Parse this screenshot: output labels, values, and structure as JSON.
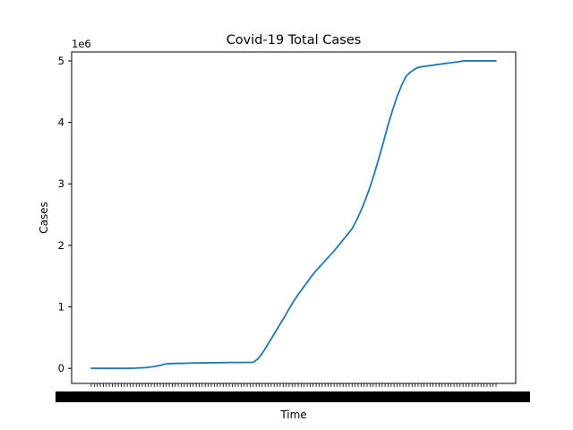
{
  "chart_data": {
    "type": "line",
    "title": "Covid-19 Total Cases",
    "xlabel": "Time",
    "ylabel": "Cases",
    "y_offset_label": "1e6",
    "ylim": [
      -0.245,
      5.145
    ],
    "yticks": [
      0,
      1,
      2,
      3,
      4,
      5
    ],
    "ytick_labels": [
      "0",
      "1",
      "2",
      "3",
      "4",
      "5"
    ],
    "y_multiplier": 1000000,
    "grid": false,
    "legend": "none",
    "x_tick_count": 136,
    "x_tick_labels_legible": false,
    "series": [
      {
        "color": "#1f77b4",
        "x": [
          0,
          10,
          20,
          25,
          30,
          33,
          34,
          36,
          40,
          50,
          60,
          70,
          75,
          78,
          80,
          85,
          90,
          95,
          100,
          105,
          110,
          115,
          120,
          125,
          130,
          135,
          140,
          145,
          150,
          155,
          160,
          165,
          170,
          175,
          180,
          185,
          190,
          195,
          200,
          205,
          210,
          215,
          220,
          225,
          230,
          235,
          240,
          245,
          250,
          255,
          260,
          265,
          270,
          275,
          280,
          285,
          290,
          295,
          300,
          305,
          310,
          315,
          320,
          325,
          330,
          335,
          340,
          345,
          350,
          355,
          360,
          365,
          370,
          375,
          380,
          385,
          390,
          395,
          400,
          405,
          410,
          415,
          420,
          425,
          430,
          435,
          440,
          445,
          450
        ],
        "y": [
          0,
          0,
          0,
          0,
          0,
          0,
          0,
          0,
          0,
          0.004,
          0.012,
          0.03,
          0.045,
          0.05,
          0.065,
          0.075,
          0.078,
          0.08,
          0.082,
          0.083,
          0.085,
          0.087,
          0.088,
          0.089,
          0.09,
          0.091,
          0.092,
          0.093,
          0.094,
          0.095,
          0.095,
          0.096,
          0.096,
          0.097,
          0.098,
          0.15,
          0.24,
          0.36,
          0.48,
          0.6,
          0.72,
          0.84,
          0.97,
          1.09,
          1.2,
          1.3,
          1.4,
          1.5,
          1.59,
          1.67,
          1.75,
          1.83,
          1.91,
          2.0,
          2.09,
          2.18,
          2.27,
          2.41,
          2.57,
          2.75,
          2.95,
          3.18,
          3.43,
          3.69,
          3.96,
          4.2,
          4.42,
          4.6,
          4.75,
          4.82,
          4.87,
          4.9,
          4.91,
          4.92,
          4.93,
          4.94,
          4.95,
          4.96,
          4.97,
          4.98,
          4.99,
          5.0,
          5.0,
          5.0,
          5.0,
          5.0,
          5.0,
          5.0,
          5.0
        ]
      }
    ]
  }
}
